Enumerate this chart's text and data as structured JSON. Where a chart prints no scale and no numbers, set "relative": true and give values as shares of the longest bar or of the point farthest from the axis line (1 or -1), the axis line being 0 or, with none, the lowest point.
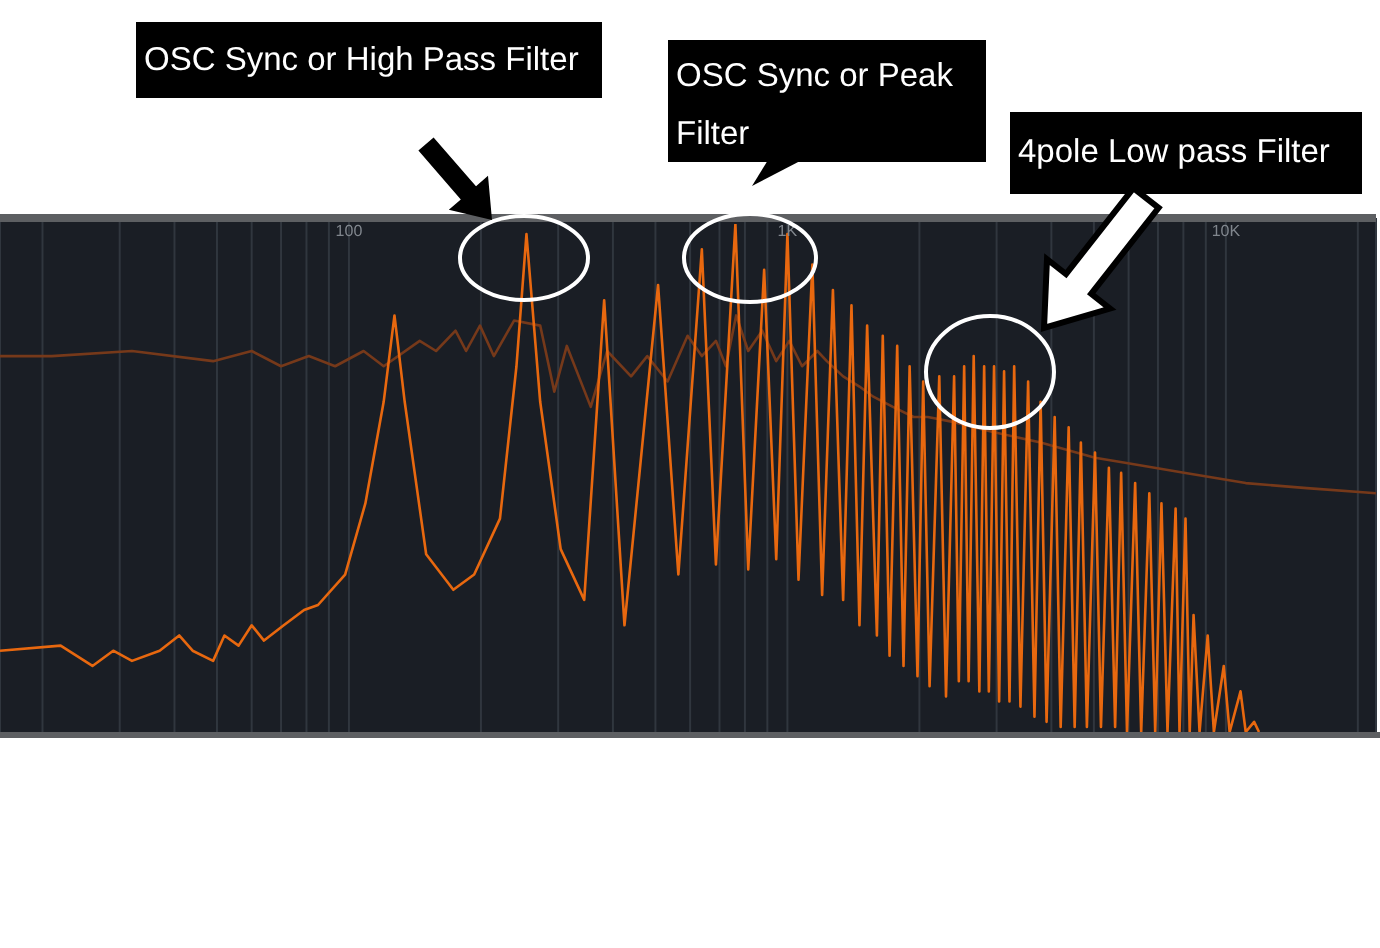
{
  "chart_data": {
    "type": "line",
    "relative": true,
    "log": "x",
    "grid": "x",
    "xlim": [
      16,
      22000
    ],
    "xticks": [
      {
        "value": 20,
        "label": null
      },
      {
        "value": 30,
        "label": null
      },
      {
        "value": 40,
        "label": null
      },
      {
        "value": 50,
        "label": null
      },
      {
        "value": 60,
        "label": null
      },
      {
        "value": 70,
        "label": null
      },
      {
        "value": 80,
        "label": null
      },
      {
        "value": 90,
        "label": null
      },
      100,
      {
        "value": 200,
        "label": null
      },
      {
        "value": 300,
        "label": null
      },
      {
        "value": 400,
        "label": null
      },
      {
        "value": 500,
        "label": null
      },
      {
        "value": 600,
        "label": null
      },
      {
        "value": 700,
        "label": null
      },
      {
        "value": 800,
        "label": null
      },
      {
        "value": 900,
        "label": null
      },
      {
        "value": 1000,
        "label": "1K"
      },
      {
        "value": 2000,
        "label": null
      },
      {
        "value": 3000,
        "label": null
      },
      {
        "value": 4000,
        "label": null
      },
      {
        "value": 5000,
        "label": null
      },
      {
        "value": 6000,
        "label": null
      },
      {
        "value": 7000,
        "label": null
      },
      {
        "value": 8000,
        "label": null
      },
      {
        "value": 9000,
        "label": null
      },
      {
        "value": 10000,
        "label": "10K"
      },
      {
        "value": 20000,
        "label": null
      }
    ],
    "series": [
      {
        "color": "#76391a",
        "x": [
          16,
          21,
          32,
          49,
          60,
          70,
          81,
          93,
          108,
          120,
          145,
          158,
          175,
          185,
          199,
          214,
          238,
          273,
          294,
          314,
          356,
          388,
          440,
          479,
          533,
          592,
          638,
          687,
          724,
          764,
          814,
          876,
          943,
          1010,
          1080,
          1170,
          1230,
          1340,
          1460,
          1570,
          1740,
          1940,
          2090,
          2400,
          2960,
          3780,
          5030,
          5890,
          8090,
          11100,
          15300,
          22000
        ],
        "values": [
          0.74,
          0.74,
          0.75,
          0.73,
          0.75,
          0.72,
          0.74,
          0.72,
          0.75,
          0.72,
          0.77,
          0.75,
          0.79,
          0.75,
          0.8,
          0.74,
          0.81,
          0.8,
          0.67,
          0.76,
          0.64,
          0.75,
          0.7,
          0.74,
          0.69,
          0.78,
          0.74,
          0.77,
          0.72,
          0.82,
          0.75,
          0.79,
          0.73,
          0.77,
          0.72,
          0.75,
          0.73,
          0.7,
          0.68,
          0.66,
          0.64,
          0.62,
          0.62,
          0.61,
          0.59,
          0.57,
          0.54,
          0.53,
          0.51,
          0.49,
          0.48,
          0.47
        ]
      },
      {
        "color": "#e8680f",
        "x": [
          16,
          22,
          26,
          29,
          32,
          37,
          41,
          44,
          49,
          52,
          56,
          60,
          64,
          71,
          79,
          85,
          98,
          109,
          120,
          127,
          134,
          150,
          173,
          193,
          221,
          241,
          254,
          273,
          304,
          344,
          382,
          425,
          507,
          564,
          638,
          687,
          761,
          814,
          885,
          943,
          1000,
          1060,
          1140,
          1200,
          1270,
          1340,
          1400,
          1460,
          1520,
          1600,
          1650,
          1710,
          1780,
          1840,
          1900,
          1980,
          2040,
          2110,
          2220,
          2300,
          2400,
          2460,
          2530,
          2590,
          2660,
          2740,
          2810,
          2880,
          2960,
          3040,
          3120,
          3210,
          3290,
          3400,
          3540,
          3660,
          3780,
          3900,
          4070,
          4200,
          4380,
          4520,
          4670,
          4820,
          5030,
          5190,
          5410,
          5590,
          5770,
          5950,
          6210,
          6410,
          6690,
          6900,
          7130,
          7360,
          7680,
          7840,
          8090,
          8270,
          8440,
          8710,
          9090,
          9390,
          9890,
          10200,
          10800,
          11100,
          11600,
          11900
        ],
        "values": [
          0.16,
          0.17,
          0.13,
          0.16,
          0.14,
          0.16,
          0.19,
          0.16,
          0.14,
          0.19,
          0.17,
          0.21,
          0.18,
          0.21,
          0.24,
          0.25,
          0.31,
          0.45,
          0.65,
          0.82,
          0.65,
          0.35,
          0.28,
          0.31,
          0.42,
          0.72,
          0.98,
          0.65,
          0.36,
          0.26,
          0.85,
          0.21,
          0.88,
          0.31,
          0.95,
          0.33,
          1,
          0.32,
          0.91,
          0.34,
          0.98,
          0.3,
          0.92,
          0.27,
          0.87,
          0.26,
          0.84,
          0.21,
          0.8,
          0.19,
          0.78,
          0.15,
          0.76,
          0.13,
          0.72,
          0.11,
          0.69,
          0.09,
          0.7,
          0.07,
          0.7,
          0.1,
          0.72,
          0.1,
          0.74,
          0.08,
          0.72,
          0.08,
          0.72,
          0.06,
          0.71,
          0.06,
          0.72,
          0.05,
          0.69,
          0.03,
          0.65,
          0.02,
          0.62,
          0.01,
          0.6,
          0.01,
          0.57,
          0.01,
          0.55,
          0.01,
          0.52,
          0.01,
          0.51,
          0,
          0.49,
          0,
          0.47,
          0,
          0.45,
          0,
          0.44,
          0,
          0.42,
          0,
          0.23,
          0,
          0.19,
          0,
          0.13,
          0,
          0.08,
          0,
          0.02,
          0
        ]
      }
    ],
    "annotations": [
      "OSC Sync or High Pass Filter",
      "OSC Sync or Peak Filter",
      "4pole Low pass Filter"
    ]
  }
}
